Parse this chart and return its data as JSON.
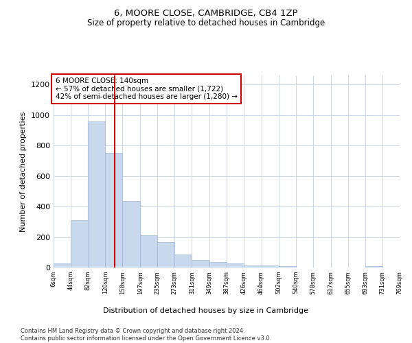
{
  "title": "6, MOORE CLOSE, CAMBRIDGE, CB4 1ZP",
  "subtitle": "Size of property relative to detached houses in Cambridge",
  "xlabel": "Distribution of detached houses by size in Cambridge",
  "ylabel": "Number of detached properties",
  "bar_color": "#c9d9ed",
  "bar_edge_color": "#a0b8d8",
  "vline_x": 140,
  "vline_color": "#cc0000",
  "annotation_text": "6 MOORE CLOSE: 140sqm\n← 57% of detached houses are smaller (1,722)\n42% of semi-detached houses are larger (1,280) →",
  "bin_edges": [
    6,
    44,
    82,
    120,
    158,
    197,
    235,
    273,
    311,
    349,
    387,
    426,
    464,
    502,
    540,
    578,
    617,
    655,
    693,
    731,
    769
  ],
  "bar_heights": [
    25,
    310,
    960,
    750,
    435,
    210,
    165,
    85,
    50,
    35,
    25,
    15,
    15,
    10,
    0,
    0,
    0,
    0,
    10,
    0
  ],
  "ylim": [
    0,
    1260
  ],
  "yticks": [
    0,
    200,
    400,
    600,
    800,
    1000,
    1200
  ],
  "footer_text": "Contains HM Land Registry data © Crown copyright and database right 2024.\nContains public sector information licensed under the Open Government Licence v3.0.",
  "background_color": "#ffffff",
  "grid_color": "#d0d8e8"
}
